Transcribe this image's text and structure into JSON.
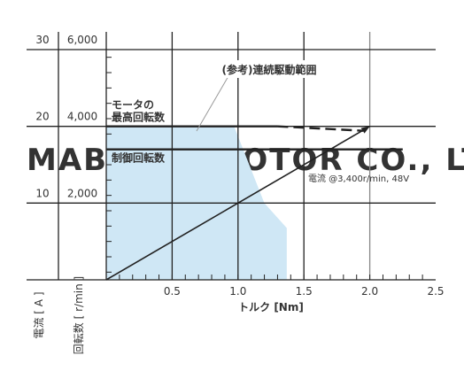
{
  "watermark": "MABUCHI MOTOR CO., LTD.",
  "colors": {
    "region_fill": "#cfe7f5",
    "grid": "#222222",
    "text": "#333333",
    "watermark": "#e4e4e4"
  },
  "chart_data": {
    "type": "line",
    "xlabel": "トルク [Nm]",
    "x_ticks": [
      "0.5",
      "1.0",
      "1.5",
      "2.0",
      "2.5"
    ],
    "xlim": [
      0,
      2.5
    ],
    "left_axes": {
      "current": {
        "label": "電流 [ A ]",
        "ticks": [
          "10",
          "20",
          "30"
        ],
        "range": [
          0,
          30
        ]
      },
      "speed": {
        "label": "回転数 [ r/min ]",
        "ticks": [
          "2,000",
          "4,000",
          "6,000"
        ],
        "range": [
          0,
          6000
        ]
      }
    },
    "series": [
      {
        "name": "電流 @3,400r/min, 48V",
        "type": "line",
        "points": [
          [
            0,
            0
          ],
          [
            1.0,
            10.0
          ],
          [
            2.0,
            20.0
          ]
        ]
      }
    ],
    "reference_lines": [
      {
        "label": "モータの\n最高回転数",
        "rpm": 4000,
        "x_end": 1.95,
        "style": "dashed-partly"
      },
      {
        "label": "制御回転数",
        "rpm": 3400,
        "x_end": 2.0,
        "style": "solid"
      }
    ],
    "continuous_region": {
      "label": "(参考)連続駆動範囲",
      "points": [
        [
          0,
          0
        ],
        [
          0,
          4000
        ],
        [
          0.97,
          4000
        ],
        [
          1.2,
          2000
        ],
        [
          1.37,
          1350
        ],
        [
          1.37,
          0
        ]
      ]
    }
  }
}
